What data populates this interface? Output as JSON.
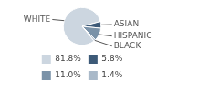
{
  "chart_data": {
    "type": "pie",
    "categories": [
      "WHITE",
      "ASIAN",
      "HISPANIC",
      "BLACK"
    ],
    "values": [
      81.8,
      5.8,
      11.0,
      1.4
    ],
    "value_labels": [
      "81.8%",
      "5.8%",
      "11.0%",
      "1.4%"
    ],
    "colors": [
      "#ccd6e0",
      "#3d5a78",
      "#7a92a8",
      "#a9b9c9"
    ],
    "legend": "bottom"
  }
}
